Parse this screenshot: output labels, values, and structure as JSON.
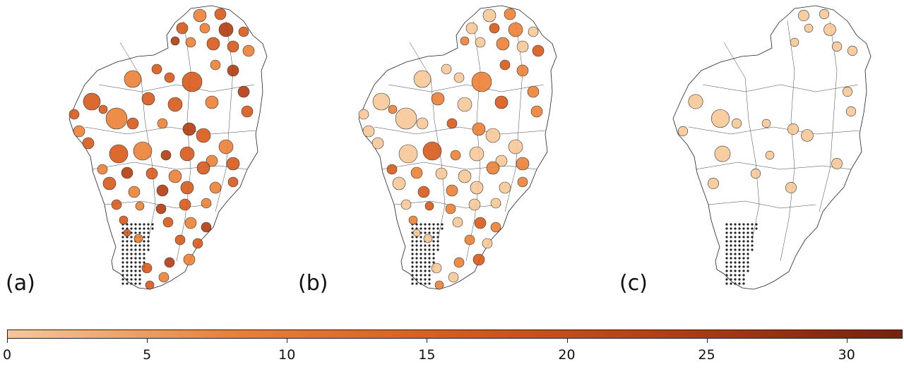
{
  "panels": [
    {
      "label": "(a)",
      "shading": "high"
    },
    {
      "label": "(b)",
      "shading": "mixed"
    },
    {
      "label": "(c)",
      "shading": "low"
    }
  ],
  "colorbar": {
    "min": 0,
    "max": 32,
    "ticks": [
      {
        "value": 0,
        "label": "0"
      },
      {
        "value": 5,
        "label": "5"
      },
      {
        "value": 10,
        "label": "10"
      },
      {
        "value": 15,
        "label": "15"
      },
      {
        "value": 20,
        "label": "20"
      },
      {
        "value": 25,
        "label": "25"
      },
      {
        "value": 30,
        "label": "30"
      }
    ],
    "colors": [
      "#f7c898",
      "#ec8036",
      "#d85a1a",
      "#b33c10",
      "#7a1f0e"
    ]
  }
}
